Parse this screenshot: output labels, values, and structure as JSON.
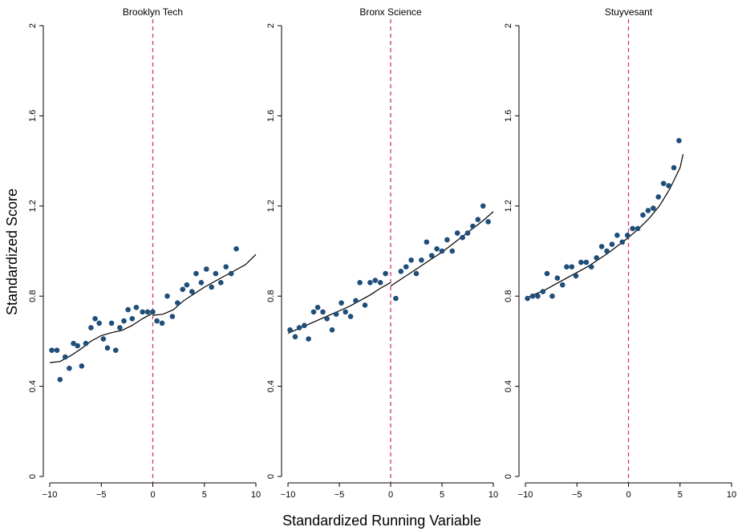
{
  "figure": {
    "ylabel": "Standardized Score",
    "xlabel": "Standardized Running Variable",
    "cutoff_color": "#d6336c",
    "point_color": "#1f4e79",
    "line_color": "#000000"
  },
  "chart_data": [
    {
      "type": "scatter",
      "title": "Brooklyn Tech",
      "xlim": [
        -10,
        10
      ],
      "ylim": [
        0,
        2
      ],
      "xticks": [
        -10,
        -5,
        0,
        5,
        10
      ],
      "yticks": [
        0,
        0.4,
        0.8,
        1.2,
        1.6,
        2
      ],
      "cutoff": 0,
      "points": [
        [
          -9.8,
          0.56
        ],
        [
          -9.3,
          0.56
        ],
        [
          -9.0,
          0.43
        ],
        [
          -8.5,
          0.53
        ],
        [
          -8.1,
          0.48
        ],
        [
          -7.7,
          0.59
        ],
        [
          -7.3,
          0.58
        ],
        [
          -6.9,
          0.49
        ],
        [
          -6.5,
          0.59
        ],
        [
          -6.0,
          0.66
        ],
        [
          -5.6,
          0.7
        ],
        [
          -5.2,
          0.68
        ],
        [
          -4.8,
          0.61
        ],
        [
          -4.4,
          0.57
        ],
        [
          -4.0,
          0.68
        ],
        [
          -3.6,
          0.56
        ],
        [
          -3.2,
          0.66
        ],
        [
          -2.8,
          0.69
        ],
        [
          -2.4,
          0.74
        ],
        [
          -2.0,
          0.7
        ],
        [
          -1.6,
          0.75
        ],
        [
          -1.0,
          0.73
        ],
        [
          -0.5,
          0.73
        ],
        [
          0.0,
          0.73
        ],
        [
          0.4,
          0.69
        ],
        [
          0.9,
          0.68
        ],
        [
          1.4,
          0.8
        ],
        [
          1.9,
          0.71
        ],
        [
          2.4,
          0.77
        ],
        [
          2.9,
          0.83
        ],
        [
          3.3,
          0.85
        ],
        [
          3.8,
          0.82
        ],
        [
          4.2,
          0.9
        ],
        [
          4.7,
          0.86
        ],
        [
          5.2,
          0.92
        ],
        [
          5.7,
          0.84
        ],
        [
          6.1,
          0.9
        ],
        [
          6.6,
          0.86
        ],
        [
          7.1,
          0.93
        ],
        [
          7.6,
          0.9
        ],
        [
          8.1,
          1.01
        ]
      ],
      "fit_left": [
        [
          -10,
          0.505
        ],
        [
          -9,
          0.51
        ],
        [
          -8,
          0.535
        ],
        [
          -7,
          0.565
        ],
        [
          -6,
          0.6
        ],
        [
          -5,
          0.625
        ],
        [
          -4,
          0.638
        ],
        [
          -3,
          0.648
        ],
        [
          -2,
          0.67
        ],
        [
          -1,
          0.7
        ],
        [
          0,
          0.725
        ]
      ],
      "fit_right": [
        [
          0,
          0.715
        ],
        [
          1,
          0.72
        ],
        [
          2,
          0.74
        ],
        [
          3,
          0.78
        ],
        [
          4,
          0.81
        ],
        [
          5,
          0.84
        ],
        [
          6,
          0.865
        ],
        [
          7,
          0.89
        ],
        [
          8,
          0.915
        ],
        [
          9,
          0.94
        ],
        [
          10,
          0.985
        ]
      ]
    },
    {
      "type": "scatter",
      "title": "Bronx Science",
      "xlim": [
        -10,
        10
      ],
      "ylim": [
        0,
        2
      ],
      "xticks": [
        -10,
        -5,
        0,
        5,
        10
      ],
      "yticks": [
        0,
        0.4,
        0.8,
        1.2,
        1.6,
        2
      ],
      "cutoff": 0,
      "points": [
        [
          -9.8,
          0.65
        ],
        [
          -9.3,
          0.62
        ],
        [
          -8.9,
          0.66
        ],
        [
          -8.4,
          0.67
        ],
        [
          -8.0,
          0.61
        ],
        [
          -7.5,
          0.73
        ],
        [
          -7.1,
          0.75
        ],
        [
          -6.6,
          0.73
        ],
        [
          -6.2,
          0.7
        ],
        [
          -5.7,
          0.65
        ],
        [
          -5.3,
          0.72
        ],
        [
          -4.8,
          0.77
        ],
        [
          -4.4,
          0.73
        ],
        [
          -3.9,
          0.71
        ],
        [
          -3.4,
          0.78
        ],
        [
          -3.0,
          0.86
        ],
        [
          -2.5,
          0.76
        ],
        [
          -2.0,
          0.86
        ],
        [
          -1.5,
          0.87
        ],
        [
          -1.0,
          0.86
        ],
        [
          -0.5,
          0.9
        ],
        [
          0.5,
          0.79
        ],
        [
          1.0,
          0.91
        ],
        [
          1.5,
          0.93
        ],
        [
          2.0,
          0.96
        ],
        [
          2.5,
          0.9
        ],
        [
          3.0,
          0.96
        ],
        [
          3.5,
          1.04
        ],
        [
          4.0,
          0.98
        ],
        [
          4.5,
          1.01
        ],
        [
          5.0,
          1.0
        ],
        [
          5.5,
          1.05
        ],
        [
          6.0,
          1.0
        ],
        [
          6.5,
          1.08
        ],
        [
          7.0,
          1.06
        ],
        [
          7.5,
          1.08
        ],
        [
          8.0,
          1.11
        ],
        [
          8.5,
          1.14
        ],
        [
          9.0,
          1.2
        ],
        [
          9.5,
          1.13
        ]
      ],
      "fit_left": [
        [
          -10,
          0.635
        ],
        [
          -9,
          0.655
        ],
        [
          -8,
          0.675
        ],
        [
          -7,
          0.695
        ],
        [
          -6,
          0.715
        ],
        [
          -5,
          0.735
        ],
        [
          -4,
          0.755
        ],
        [
          -3,
          0.78
        ],
        [
          -2,
          0.805
        ],
        [
          -1,
          0.835
        ],
        [
          0,
          0.86
        ]
      ],
      "fit_right": [
        [
          0,
          0.845
        ],
        [
          1,
          0.875
        ],
        [
          2,
          0.905
        ],
        [
          3,
          0.935
        ],
        [
          4,
          0.965
        ],
        [
          5,
          0.995
        ],
        [
          6,
          1.03
        ],
        [
          7,
          1.065
        ],
        [
          8,
          1.1
        ],
        [
          9,
          1.135
        ],
        [
          10,
          1.175
        ]
      ]
    },
    {
      "type": "scatter",
      "title": "Stuyvesant",
      "xlim": [
        -10,
        10
      ],
      "ylim": [
        0,
        2
      ],
      "xticks": [
        -10,
        -5,
        0,
        5,
        10
      ],
      "yticks": [
        0,
        0.4,
        0.8,
        1.2,
        1.6,
        2
      ],
      "cutoff": 0,
      "points": [
        [
          -9.8,
          0.79
        ],
        [
          -9.3,
          0.8
        ],
        [
          -8.8,
          0.8
        ],
        [
          -8.3,
          0.82
        ],
        [
          -7.9,
          0.9
        ],
        [
          -7.4,
          0.8
        ],
        [
          -6.9,
          0.88
        ],
        [
          -6.4,
          0.85
        ],
        [
          -6.0,
          0.93
        ],
        [
          -5.5,
          0.93
        ],
        [
          -5.1,
          0.89
        ],
        [
          -4.6,
          0.95
        ],
        [
          -4.1,
          0.95
        ],
        [
          -3.6,
          0.93
        ],
        [
          -3.1,
          0.97
        ],
        [
          -2.6,
          1.02
        ],
        [
          -2.1,
          1.0
        ],
        [
          -1.6,
          1.03
        ],
        [
          -1.1,
          1.07
        ],
        [
          -0.6,
          1.04
        ],
        [
          -0.1,
          1.07
        ],
        [
          0.4,
          1.1
        ],
        [
          0.9,
          1.1
        ],
        [
          1.4,
          1.16
        ],
        [
          1.9,
          1.18
        ],
        [
          2.4,
          1.19
        ],
        [
          2.9,
          1.24
        ],
        [
          3.4,
          1.3
        ],
        [
          3.9,
          1.29
        ],
        [
          4.4,
          1.37
        ],
        [
          4.9,
          1.49
        ]
      ],
      "fit_left": [
        [
          -10,
          0.79
        ],
        [
          -9,
          0.81
        ],
        [
          -8,
          0.83
        ],
        [
          -7,
          0.855
        ],
        [
          -6,
          0.88
        ],
        [
          -5,
          0.905
        ],
        [
          -4,
          0.93
        ],
        [
          -3,
          0.96
        ],
        [
          -2,
          0.99
        ],
        [
          -1,
          1.025
        ],
        [
          0,
          1.06
        ]
      ],
      "fit_right": [
        [
          0,
          1.06
        ],
        [
          1,
          1.1
        ],
        [
          2,
          1.145
        ],
        [
          3,
          1.2
        ],
        [
          4,
          1.275
        ],
        [
          5,
          1.37
        ],
        [
          5.3,
          1.43
        ]
      ]
    }
  ]
}
